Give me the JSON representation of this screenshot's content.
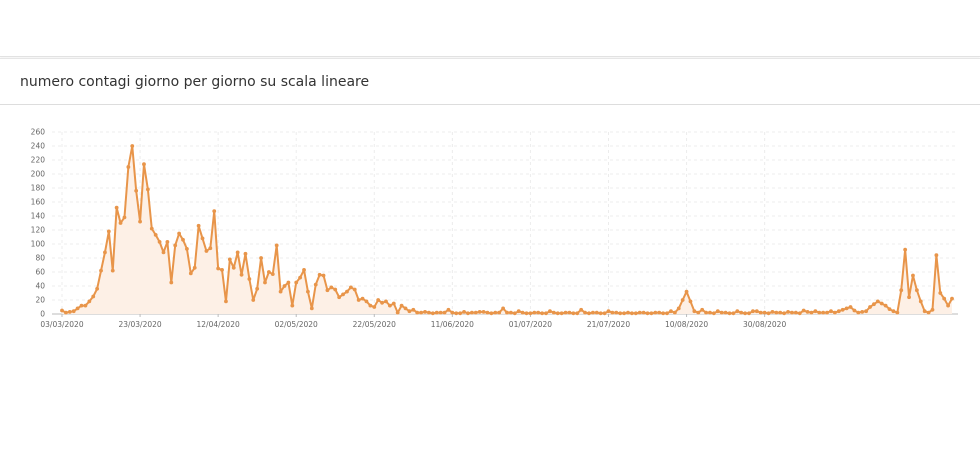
{
  "top_panel": {},
  "card": {
    "title": "numero contagi giorno per giorno su scala lineare"
  },
  "colors": {
    "line": "#e8954a",
    "area": "#fdf0e6",
    "grid": "#ececec",
    "axis": "#bbbbbb"
  },
  "chart_data": {
    "type": "area",
    "title": "",
    "xlabel": "",
    "ylabel": "",
    "ylim": [
      0,
      260
    ],
    "y_ticks": [
      0,
      20,
      40,
      60,
      80,
      100,
      120,
      140,
      160,
      180,
      200,
      220,
      240,
      260
    ],
    "x_tick_labels": [
      "03/03/2020",
      "23/03/2020",
      "12/04/2020",
      "02/05/2020",
      "22/05/2020",
      "11/06/2020",
      "01/07/2020",
      "21/07/2020",
      "10/08/2020",
      "30/08/2020"
    ],
    "grid": true,
    "start_date": "2020-03-03",
    "series": [
      {
        "values": [
          5,
          2,
          3,
          4,
          8,
          12,
          12,
          18,
          25,
          36,
          62,
          88,
          118,
          62,
          152,
          130,
          138,
          210,
          240,
          176,
          132,
          214,
          178,
          122,
          113,
          103,
          88,
          103,
          45,
          98,
          115,
          106,
          93,
          58,
          66,
          126,
          108,
          90,
          94,
          147,
          65,
          63,
          18,
          78,
          66,
          88,
          56,
          86,
          50,
          20,
          36,
          80,
          45,
          60,
          57,
          98,
          32,
          40,
          45,
          12,
          45,
          52,
          63,
          32,
          8,
          42,
          56,
          55,
          34,
          38,
          35,
          24,
          28,
          32,
          38,
          35,
          20,
          22,
          18,
          12,
          10,
          20,
          16,
          18,
          12,
          15,
          2,
          12,
          8,
          4,
          6,
          2,
          2,
          3,
          2,
          1,
          2,
          2,
          2,
          6,
          2,
          1,
          1,
          3,
          1,
          2,
          2,
          3,
          3,
          2,
          1,
          2,
          2,
          8,
          2,
          2,
          1,
          4,
          2,
          1,
          1,
          2,
          2,
          1,
          1,
          4,
          2,
          1,
          1,
          2,
          2,
          1,
          1,
          6,
          2,
          1,
          2,
          2,
          1,
          1,
          4,
          2,
          2,
          1,
          1,
          2,
          1,
          1,
          2,
          2,
          1,
          1,
          2,
          2,
          1,
          1,
          4,
          2,
          8,
          20,
          32,
          18,
          4,
          2,
          6,
          2,
          2,
          1,
          4,
          2,
          2,
          1,
          1,
          4,
          2,
          1,
          1,
          4,
          4,
          2,
          2,
          1,
          3,
          2,
          2,
          1,
          3,
          2,
          2,
          1,
          5,
          3,
          2,
          4,
          2,
          2,
          2,
          4,
          2,
          4,
          6,
          8,
          10,
          5,
          2,
          3,
          4,
          10,
          14,
          18,
          15,
          12,
          7,
          4,
          2,
          34,
          92,
          24,
          55,
          34,
          18,
          4,
          2,
          6,
          84,
          30,
          22,
          12,
          22
        ]
      }
    ]
  }
}
